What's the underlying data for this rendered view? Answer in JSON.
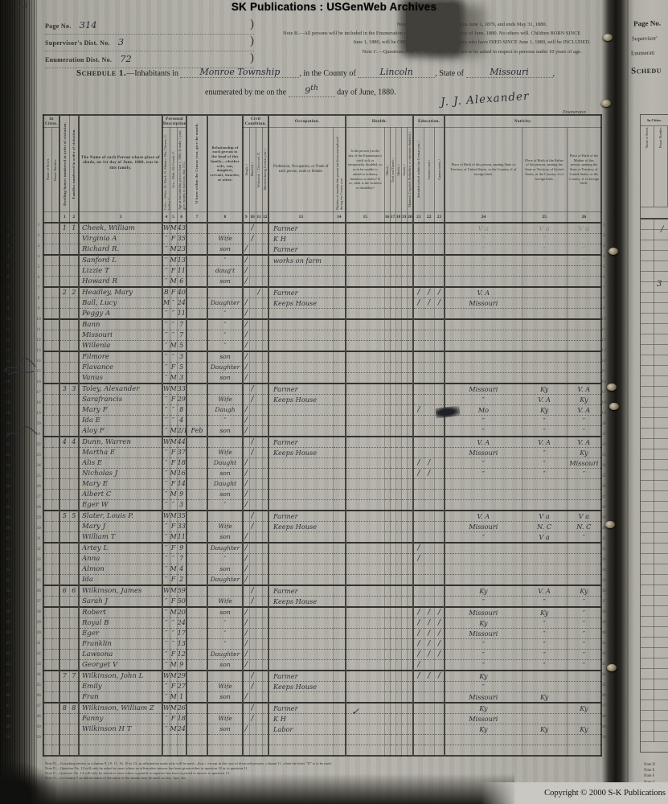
{
  "banner": {
    "text": "SK Publications : USGenWeb Archives"
  },
  "header": {
    "corner_mark": "13",
    "page_no_label": "Page No.",
    "page_no_value": "314",
    "supervisor_label": "Supervisor's Dist. No.",
    "supervisor_value": "3",
    "enumeration_label": "Enumeration Dist. No.",
    "enumeration_value": "72",
    "paren": ")",
    "note_a": "Note A.—The Census Year begins June 1, 1879, and ends May 31, 1880.",
    "note_b1": "Note B.—All persons will be included in the Enumeration who were living on the 1st day of June, 1880.  No others will.  Children BORN SINCE",
    "note_b2": "June 1, 1880, will be OMITTED.  Members of Families who have DIED SINCE June 1, 1880, will be INCLUDED.",
    "note_c": "Note C.—Questions Nos. 13, 14, 22 and 23 are not to be asked in respect to persons under 10 years of age."
  },
  "title": {
    "schedule_label": "Schedule 1.",
    "line1_a": "—Inhabitants in",
    "place": "Monroe Township",
    "line1_b": ", in the County of",
    "county": "Lincoln",
    "line1_c": ", State of",
    "state": "Missouri",
    "line1_end": ",",
    "line2_a": "enumerated by me on the",
    "day": "9",
    "day_suffix": "th",
    "line2_b": "day of June, 1880.",
    "signature": "J. J. Alexander",
    "enumerator_label": "Enumerator."
  },
  "table": {
    "line_count": 50,
    "groups": {
      "in_cities": "In Cities.",
      "personal": "Personal Description.",
      "civil": "Civil Condition.",
      "occupation": "Occupation.",
      "health": "Health.",
      "education": "Education.",
      "nativity": "Nativity."
    },
    "cols": {
      "street": "Name of Street.",
      "house": "House Number.",
      "c1": "Dwelling-houses numbered in order of visitation.",
      "c2": "Families numbered in order of visitation.",
      "c3": "The Name of each Person whose place of abode, on 1st day of June, 1880, was in this family.",
      "c4": "Color—White, W; Black, B; Mulatto, Mu; Chinese, C; Indian, I.",
      "c5": "Sex—Male, M; Female, F.",
      "c6": "Age at last birthday prior to June 1, 1880. If under 1 year, give months in fractions, thus 3/12.",
      "c7": "If born within the Census year, give the month.",
      "c8": "Relationship of each person to the head of this family—whether wife, son, daughter, servant, boarder, or other.",
      "c9": "Single, /",
      "c10": "Married, /",
      "c11": "Widowed, /.  Divorced, D.",
      "c12": "Married during Census year, /",
      "c13": "Profession, Occupation, or Trade of each person, male or female.",
      "c14": "Number of months this person has been unemployed during the Census year.",
      "c15": "Is the person [on the day of the Enumerator's visit] sick or temporarily disabled, so as to be unable to attend to ordinary business or duties?  If so, what is the sickness or disability?",
      "c16": "Blind, /",
      "c17": "Deaf and Dumb, /",
      "c18": "Idiotic, /",
      "c19": "Insane, /",
      "c20": "Maimed, Crippled, Bedridden, or otherwise disabled, /",
      "c21": "Attended school within the Census year, /",
      "c22": "Cannot read, /",
      "c23": "Cannot write, /",
      "c24": "Place of Birth of this person, naming State or Territory of United States, or the Country, if of foreign birth.",
      "c25": "Place of Birth of the Father of this person, naming the State or Territory of United States, or the Country, if of foreign birth.",
      "c26": "Place of Birth of the Mother of this person, naming the State or Territory of United States, or the Country, if of foreign birth."
    },
    "numbers": [
      "1",
      "2",
      "3",
      "4",
      "5",
      "6",
      "7",
      "8",
      "9",
      "10",
      "11",
      "12",
      "13",
      "14",
      "15",
      "16",
      "17",
      "18",
      "19",
      "20",
      "21",
      "22",
      "23",
      "24",
      "25",
      "26"
    ],
    "row_fields": [
      "dwelling",
      "family",
      "name",
      "color",
      "sex",
      "age",
      "birth_month",
      "relationship",
      "single",
      "married",
      "widowed",
      "married_census_year",
      "occupation",
      "ed_school",
      "ed_cannot_read",
      "ed_cannot_write",
      "birthplace",
      "father_birthplace",
      "mother_birthplace",
      "flags"
    ],
    "rows": [
      [
        "1",
        "1",
        "Cheek, William",
        "W",
        "M",
        "43",
        "",
        "",
        "",
        "/",
        "",
        "",
        "Farmer",
        "",
        "",
        "",
        "V a",
        "V a",
        "V a",
        "f"
      ],
      [
        "",
        "",
        "Virginia A",
        "″",
        "F",
        "35",
        "",
        "Wife",
        "",
        "/",
        "",
        "",
        "K H",
        "",
        "",
        "",
        "″",
        "″",
        "″",
        "f"
      ],
      [
        "",
        "",
        "Richard R.",
        "″",
        "M",
        "23",
        "",
        "son",
        "/",
        "",
        "",
        "",
        "Farmer",
        "",
        "",
        "",
        "″",
        "″",
        "″",
        "f"
      ],
      [
        "",
        "",
        "Sanford L",
        "″",
        "M",
        "13",
        "",
        "″",
        "/",
        "",
        "",
        "",
        "works on farm",
        "",
        "",
        "",
        "″",
        "″",
        "″",
        "hf"
      ],
      [
        "",
        "",
        "Lizzie T",
        "″",
        "F",
        "11",
        "",
        "daug't",
        "/",
        "",
        "",
        "",
        "",
        "",
        "",
        "",
        "",
        "",
        "",
        "f"
      ],
      [
        "",
        "",
        "Howard R",
        "″",
        "M",
        "6",
        "",
        "son",
        "/",
        "",
        "",
        "",
        "",
        "",
        "",
        "",
        "",
        "",
        "",
        "f"
      ],
      [
        "2",
        "2",
        "Headley, Mary",
        "B",
        "F",
        "40",
        "",
        "",
        "",
        "",
        "/",
        "",
        "Farmer",
        "/",
        "/",
        "/",
        "V. A",
        "",
        "",
        "h"
      ],
      [
        "",
        "",
        "Ball, Lucy",
        "Mu",
        "″",
        "24",
        "",
        "Daughter",
        "/",
        "",
        "",
        "",
        "Keeps House",
        "/",
        "/",
        "/",
        "Missouri",
        "",
        "",
        ""
      ],
      [
        "",
        "",
        "Peggy A",
        "″",
        "″",
        "11",
        "",
        "″",
        "/",
        "",
        "",
        "",
        "",
        "",
        "",
        "",
        "",
        "",
        "",
        ""
      ],
      [
        "",
        "",
        "Bann",
        "″",
        "″",
        "7",
        "",
        "″",
        "/",
        "",
        "",
        "",
        "",
        "",
        "",
        "",
        "",
        "",
        "",
        "h"
      ],
      [
        "",
        "",
        "Missouri",
        "″",
        "″",
        "7",
        "",
        "″",
        "/",
        "",
        "",
        "",
        "",
        "",
        "",
        "",
        "",
        "",
        "",
        ""
      ],
      [
        "",
        "",
        "Willenia",
        "″",
        "M",
        "5",
        "",
        "″",
        "/",
        "",
        "",
        "",
        "",
        "",
        "",
        "",
        "",
        "",
        "",
        ""
      ],
      [
        "",
        "",
        "Filmore",
        "″",
        "″",
        "3",
        "",
        "son",
        "/",
        "",
        "",
        "",
        "",
        "",
        "",
        "",
        "",
        "",
        "",
        "h"
      ],
      [
        "",
        "",
        "Flavance",
        "″",
        "F",
        "5",
        "",
        "Daughter",
        "/",
        "",
        "",
        "",
        "",
        "",
        "",
        "",
        "",
        "",
        "",
        ""
      ],
      [
        "",
        "",
        "Vanus",
        "″",
        "M",
        "3",
        "",
        "son",
        "/",
        "",
        "",
        "",
        "",
        "",
        "",
        "",
        "",
        "",
        "",
        ""
      ],
      [
        "3",
        "3",
        "Toley, Alexander",
        "W",
        "M",
        "33",
        "",
        "",
        "",
        "/",
        "",
        "",
        "Farmer",
        "",
        "",
        "",
        "Missouri",
        "Ky",
        "V. A",
        "h"
      ],
      [
        "",
        "",
        "Sarafrancis",
        "″",
        "F",
        "29",
        "",
        "Wife",
        "",
        "/",
        "",
        "",
        "Keeps House",
        "",
        "",
        "",
        "″",
        "V. A",
        "Ky",
        ""
      ],
      [
        "",
        "",
        "Mary F",
        "″",
        "″",
        "8",
        "",
        "Daugh",
        "/",
        "",
        "",
        "",
        "",
        "/",
        "",
        "",
        "Mo",
        "Ky",
        "V. A",
        ""
      ],
      [
        "",
        "",
        "Ida E",
        "″",
        "″",
        "4",
        "",
        "″",
        "/",
        "",
        "",
        "",
        "",
        "",
        "",
        "",
        "″",
        "″",
        "″",
        ""
      ],
      [
        "",
        "",
        "Aloy F",
        "″",
        "M",
        "2/12",
        "Feb",
        "son",
        "/",
        "",
        "",
        "",
        "",
        "",
        "",
        "",
        "″",
        "″",
        "″",
        ""
      ],
      [
        "4",
        "4",
        "Dunn, Warren",
        "W",
        "M",
        "44",
        "",
        "",
        "",
        "/",
        "",
        "",
        "Farmer",
        "",
        "",
        "",
        "V. A",
        "V. A",
        "V. A",
        "h"
      ],
      [
        "",
        "",
        "Martha E",
        "″",
        "F",
        "37",
        "",
        "Wife",
        "",
        "/",
        "",
        "",
        "Keeps House",
        "",
        "",
        "",
        "Missouri",
        "″",
        "Ky",
        ""
      ],
      [
        "",
        "",
        "Alis E",
        "″",
        "F",
        "18",
        "",
        "Daught",
        "/",
        "",
        "",
        "",
        "",
        "/",
        "/",
        "",
        "″",
        "″",
        "Missouri",
        ""
      ],
      [
        "",
        "",
        "Nicholas J",
        "″",
        "M",
        "16",
        "",
        "son",
        "/",
        "",
        "",
        "",
        "",
        "/",
        "/",
        "",
        "″",
        "″",
        "″",
        ""
      ],
      [
        "",
        "",
        "Mary E",
        "″",
        "F",
        "14",
        "",
        "Daught",
        "/",
        "",
        "",
        "",
        "",
        "",
        "",
        "",
        "",
        "",
        "",
        ""
      ],
      [
        "",
        "",
        "Albert C",
        "″",
        "M",
        "9",
        "",
        "son",
        "/",
        "",
        "",
        "",
        "",
        "",
        "",
        "",
        "",
        "",
        "",
        ""
      ],
      [
        "",
        "",
        "Eger W",
        "″",
        "″",
        "3",
        "",
        "″",
        "/",
        "",
        "",
        "",
        "",
        "",
        "",
        "",
        "",
        "",
        "",
        ""
      ],
      [
        "5",
        "5",
        "Slater, Louis P.",
        "W",
        "M",
        "35",
        "",
        "",
        "",
        "/",
        "",
        "",
        "Farmer",
        "",
        "",
        "",
        "V. A",
        "V a",
        "V a",
        "h"
      ],
      [
        "",
        "",
        "Mary J",
        "″",
        "F",
        "33",
        "",
        "Wife",
        "",
        "/",
        "",
        "",
        "Keeps House",
        "",
        "",
        "",
        "Missouri",
        "N. C",
        "N. C",
        ""
      ],
      [
        "",
        "",
        "William T",
        "″",
        "M",
        "11",
        "",
        "son",
        "/",
        "",
        "",
        "",
        "",
        "",
        "",
        "",
        "″",
        "V a",
        "″",
        ""
      ],
      [
        "",
        "",
        "Artey L",
        "″",
        "F",
        "9",
        "",
        "Daughter",
        "/",
        "",
        "",
        "",
        "",
        "/",
        "",
        "",
        "",
        "",
        "",
        "h"
      ],
      [
        "",
        "",
        "Anna",
        "″",
        "″",
        "7",
        "",
        "″",
        "/",
        "",
        "",
        "",
        "",
        "/",
        "",
        "",
        "",
        "",
        "",
        ""
      ],
      [
        "",
        "",
        "Almon",
        "″",
        "M",
        "4",
        "",
        "son",
        "/",
        "",
        "",
        "",
        "",
        "",
        "",
        "",
        "",
        "",
        "",
        ""
      ],
      [
        "",
        "",
        "Ida",
        "″",
        "F",
        "2",
        "",
        "Daughter",
        "/",
        "",
        "",
        "",
        "",
        "",
        "",
        "",
        "",
        "",
        "",
        ""
      ],
      [
        "6",
        "6",
        "Wilkinson, James",
        "W",
        "M",
        "59",
        "",
        "",
        "",
        "/",
        "",
        "",
        "Farmer",
        "",
        "",
        "",
        "Ky",
        "V. A",
        "Ky",
        "h"
      ],
      [
        "",
        "",
        "Sarah J",
        "″",
        "F",
        "50",
        "",
        "Wife",
        "",
        "/",
        "",
        "",
        "Keeps House",
        "",
        "",
        "",
        "″",
        "″",
        "″",
        ""
      ],
      [
        "",
        "",
        "Robert",
        "″",
        "M",
        "20",
        "",
        "son",
        "/",
        "",
        "",
        "",
        "",
        "/",
        "/",
        "/",
        "Missouri",
        "Ky",
        "″",
        "h"
      ],
      [
        "",
        "",
        "Royal B",
        "″",
        "″",
        "24",
        "",
        "″",
        "/",
        "",
        "",
        "",
        "",
        "/",
        "/",
        "/",
        "Ky",
        "″",
        "″",
        ""
      ],
      [
        "",
        "",
        "Eger",
        "″",
        "″",
        "17",
        "",
        "″",
        "/",
        "",
        "",
        "",
        "",
        "/",
        "/",
        "/",
        "Missouri",
        "″",
        "″",
        ""
      ],
      [
        "",
        "",
        "Franklin",
        "″",
        "″",
        "13",
        "",
        "″",
        "/",
        "",
        "",
        "",
        "",
        "/",
        "/",
        "/",
        "″",
        "″",
        "″",
        ""
      ],
      [
        "",
        "",
        "Lawsona",
        "″",
        "F",
        "12",
        "",
        "Daughter",
        "/",
        "",
        "",
        "",
        "",
        "/",
        "/",
        "/",
        "″",
        "″",
        "″",
        ""
      ],
      [
        "",
        "",
        "Georget V",
        "″",
        "M",
        "9",
        "",
        "son",
        "/",
        "",
        "",
        "",
        "",
        "/",
        "",
        "",
        "″",
        "″",
        "″",
        ""
      ],
      [
        "7",
        "7",
        "Wilkinson, John L",
        "W",
        "M",
        "29",
        "",
        "",
        "",
        "/",
        "",
        "",
        "Farmer",
        "/",
        "/",
        "/",
        "Ky",
        "",
        "",
        "h"
      ],
      [
        "",
        "",
        "Emily",
        "″",
        "F",
        "27",
        "",
        "Wife",
        "",
        "/",
        "",
        "",
        "Keeps House",
        "",
        "",
        "",
        "″",
        "",
        "",
        ""
      ],
      [
        "",
        "",
        "Fran",
        "″",
        "M",
        "1",
        "",
        "son",
        "/",
        "",
        "",
        "",
        "",
        "",
        "",
        "",
        "Missouri",
        "Ky",
        "",
        ""
      ],
      [
        "8",
        "8",
        "Wilkinson, William Z",
        "W",
        "M",
        "26",
        "",
        "",
        "",
        "/",
        "",
        "",
        "Farmer",
        "",
        "",
        "",
        "Ky",
        "",
        "Ky",
        "h"
      ],
      [
        "",
        "",
        "Fanny",
        "″",
        "F",
        "18",
        "",
        "Wife",
        "",
        "/",
        "",
        "",
        "K H",
        "",
        "",
        "",
        "Missouri",
        "",
        "",
        ""
      ],
      [
        "",
        "",
        "Wilkinson H T",
        "″",
        "M",
        "24",
        "",
        "son",
        "/",
        "",
        "",
        "",
        "Labor",
        "",
        "",
        "",
        "Ky",
        "Ky",
        "Ky",
        ""
      ],
      [
        "",
        "",
        "",
        "",
        "",
        "",
        "",
        "",
        "",
        "",
        "",
        "",
        "",
        "",
        "",
        "",
        "",
        "",
        "",
        ""
      ],
      [
        "",
        "",
        "",
        "",
        "",
        "",
        "",
        "",
        "",
        "",
        "",
        "",
        "",
        "",
        "",
        "",
        "",
        "",
        "",
        ""
      ]
    ]
  },
  "next_page": {
    "page_no": "Page No.",
    "supervisor": "Supervisor'",
    "enumeration": "Enumerati",
    "schedule": "Schedu",
    "in_cities": "In Cities.",
    "street": "Name of Street.",
    "house": "House Number."
  },
  "marks": {
    "check": "✓",
    "sliver_tick": "/",
    "sliver_digit": "3"
  },
  "footer": {
    "note_d": "Note D.—In making entries in columns 9, 10, 11, 16, 19 to 23, an affirmative mark only will be used—thus /, except in the case of divorced persons, column 11, when the letter \"D\" is to be used.",
    "note_e": "Note E.—Question No. 12 will only be asked in cases where an affirmative answer has been given either to question 10 or to question 11.",
    "note_f": "Note F.—Question No. 14 will only be asked in cases where a gainful occupation has been reported in answer to question 13.",
    "note_g": "Note G.—In column 7 an abbreviation of the name of the month may be used, as Jan., Apr., &c.",
    "fragments": [
      "Note D",
      "Note E",
      "Note F",
      "Note G"
    ],
    "copyright": "Copyright © 2000 S-K Publications"
  }
}
